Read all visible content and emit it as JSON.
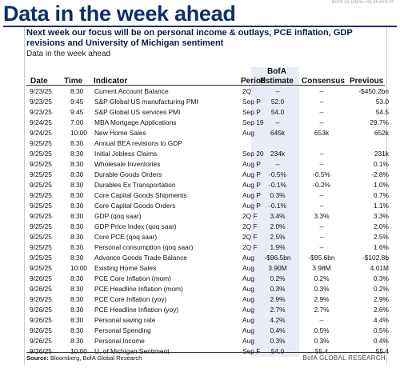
{
  "top_watermark": "BofA GLOBAL RESEARCH",
  "title": "Data in the week ahead",
  "subhead": "Next week our focus will be on personal income & outlays, PCE inflation, GDP revisions and University of Michigan sentiment",
  "subcaption": "Data in the week ahead",
  "columns": {
    "date": "Date",
    "time": "Time",
    "indicator": "Indicator",
    "period": "Period",
    "bofa_top": "BofA",
    "estimate": "Estimate",
    "consensus": "Consensus",
    "previous": "Previous"
  },
  "rows": [
    {
      "date": "9/23/25",
      "time": "8:30",
      "indicator": "Current Account Balance",
      "period": "2Q",
      "estimate": "--",
      "consensus": "--",
      "previous": "-$450.2bn"
    },
    {
      "date": "9/23/25",
      "time": "9:45",
      "indicator": "S&P Global US manufacturing PMI",
      "period": "Sep P",
      "estimate": "52.0",
      "consensus": "--",
      "previous": "53.0"
    },
    {
      "date": "9/23/25",
      "time": "9:45",
      "indicator": "S&P Global US services PMI",
      "period": "Sep P",
      "estimate": "54.0",
      "consensus": "--",
      "previous": "54.5"
    },
    {
      "date": "9/24/25",
      "time": "7:00",
      "indicator": "MBA Mortgage Applications",
      "period": "Sep 19",
      "estimate": "--",
      "consensus": "--",
      "previous": "29.7%"
    },
    {
      "date": "9/24/25",
      "time": "10:00",
      "indicator": "New Home Sales",
      "period": "Aug",
      "estimate": "645k",
      "consensus": "653k",
      "previous": "652k"
    },
    {
      "date": "9/25/25",
      "time": "8:30",
      "indicator": "Annual BEA revisions to GDP",
      "period": "",
      "estimate": "",
      "consensus": "",
      "previous": ""
    },
    {
      "date": "9/25/25",
      "time": "8:30",
      "indicator": "Initial Jobless Claims",
      "period": "Sep 20",
      "estimate": "234k",
      "consensus": "--",
      "previous": "231k"
    },
    {
      "date": "9/25/25",
      "time": "8:30",
      "indicator": "Wholesale Inventories",
      "period": "Aug P",
      "estimate": "--",
      "consensus": "--",
      "previous": "0.1%"
    },
    {
      "date": "9/25/25",
      "time": "8:30",
      "indicator": "Durable Goods Orders",
      "period": "Aug P",
      "estimate": "-0.5%",
      "consensus": "-0.5%",
      "previous": "-2.8%"
    },
    {
      "date": "9/25/25",
      "time": "8:30",
      "indicator": "Durables Ex Transportation",
      "period": "Aug P",
      "estimate": "-0.1%",
      "consensus": "-0.2%",
      "previous": "1.0%"
    },
    {
      "date": "9/25/25",
      "time": "8:30",
      "indicator": "Core Capital Goods Shipments",
      "period": "Aug P",
      "estimate": "0.3%",
      "consensus": "--",
      "previous": "0.7%"
    },
    {
      "date": "9/25/25",
      "time": "8:30",
      "indicator": "Core Capital Goods Orders",
      "period": "Aug P",
      "estimate": "-0.1%",
      "consensus": "--",
      "previous": "1.1%"
    },
    {
      "date": "9/25/25",
      "time": "8:30",
      "indicator": "GDP (qoq saar)",
      "period": "2Q F",
      "estimate": "3.4%",
      "consensus": "3.3%",
      "previous": "3.3%"
    },
    {
      "date": "9/25/25",
      "time": "8:30",
      "indicator": "GDP Price Index (qoq saar)",
      "period": "2Q F",
      "estimate": "2.0%",
      "consensus": "--",
      "previous": "2.0%"
    },
    {
      "date": "9/25/25",
      "time": "8:30",
      "indicator": "Core PCE (qoq saar)",
      "period": "2Q F",
      "estimate": "2.5%",
      "consensus": "--",
      "previous": "2.5%"
    },
    {
      "date": "9/25/25",
      "time": "8:30",
      "indicator": "Personal consumption (qoq saar)",
      "period": "2Q F",
      "estimate": "1.9%",
      "consensus": "--",
      "previous": "1.6%"
    },
    {
      "date": "9/25/25",
      "time": "8:30",
      "indicator": "Advance Goods Trade Balance",
      "period": "Aug",
      "estimate": "-$96.5bn",
      "consensus": "-$95.6bn",
      "previous": "-$102.8b"
    },
    {
      "date": "9/25/25",
      "time": "10:00",
      "indicator": "Existing Home Sales",
      "period": "Aug",
      "estimate": "3.90M",
      "consensus": "3.98M",
      "previous": "4.01M"
    },
    {
      "date": "9/26/25",
      "time": "8:30",
      "indicator": "PCE Core Inflation (mom)",
      "period": "Aug",
      "estimate": "0.2%",
      "consensus": "0.2%",
      "previous": "0.3%"
    },
    {
      "date": "9/26/25",
      "time": "8:30",
      "indicator": "PCE Headline Inflation (mom)",
      "period": "Aug",
      "estimate": "0.3%",
      "consensus": "0.3%",
      "previous": "0.2%"
    },
    {
      "date": "9/26/25",
      "time": "8:30",
      "indicator": "PCE Core Inflation (yoy)",
      "period": "Aug",
      "estimate": "2.9%",
      "consensus": "2.9%",
      "previous": "2.9%"
    },
    {
      "date": "9/26/25",
      "time": "8:30",
      "indicator": "PCE Headline Inflation (yoy)",
      "period": "Aug",
      "estimate": "2.7%",
      "consensus": "2.7%",
      "previous": "2.6%"
    },
    {
      "date": "9/26/25",
      "time": "8:30",
      "indicator": "Personal saving rate",
      "period": "Aug",
      "estimate": "4.2%",
      "consensus": "--",
      "previous": "4.4%"
    },
    {
      "date": "9/26/25",
      "time": "8:30",
      "indicator": "Personal Spending",
      "period": "Aug",
      "estimate": "0.4%",
      "consensus": "0.5%",
      "previous": "0.5%"
    },
    {
      "date": "9/26/25",
      "time": "8:30",
      "indicator": "Personal Income",
      "period": "Aug",
      "estimate": "0.3%",
      "consensus": "0.3%",
      "previous": "0.4%"
    },
    {
      "date": "9/26/25",
      "time": "10:00",
      "indicator": "U. of Michigan Sentiment",
      "period": "Sep F",
      "estimate": "54.0",
      "consensus": "55.4",
      "previous": "55.4"
    }
  ],
  "source_label": "Source:",
  "source_text": "Bloomberg, BofA Global Research",
  "brand": "BofA GLOBAL RESEARCH"
}
